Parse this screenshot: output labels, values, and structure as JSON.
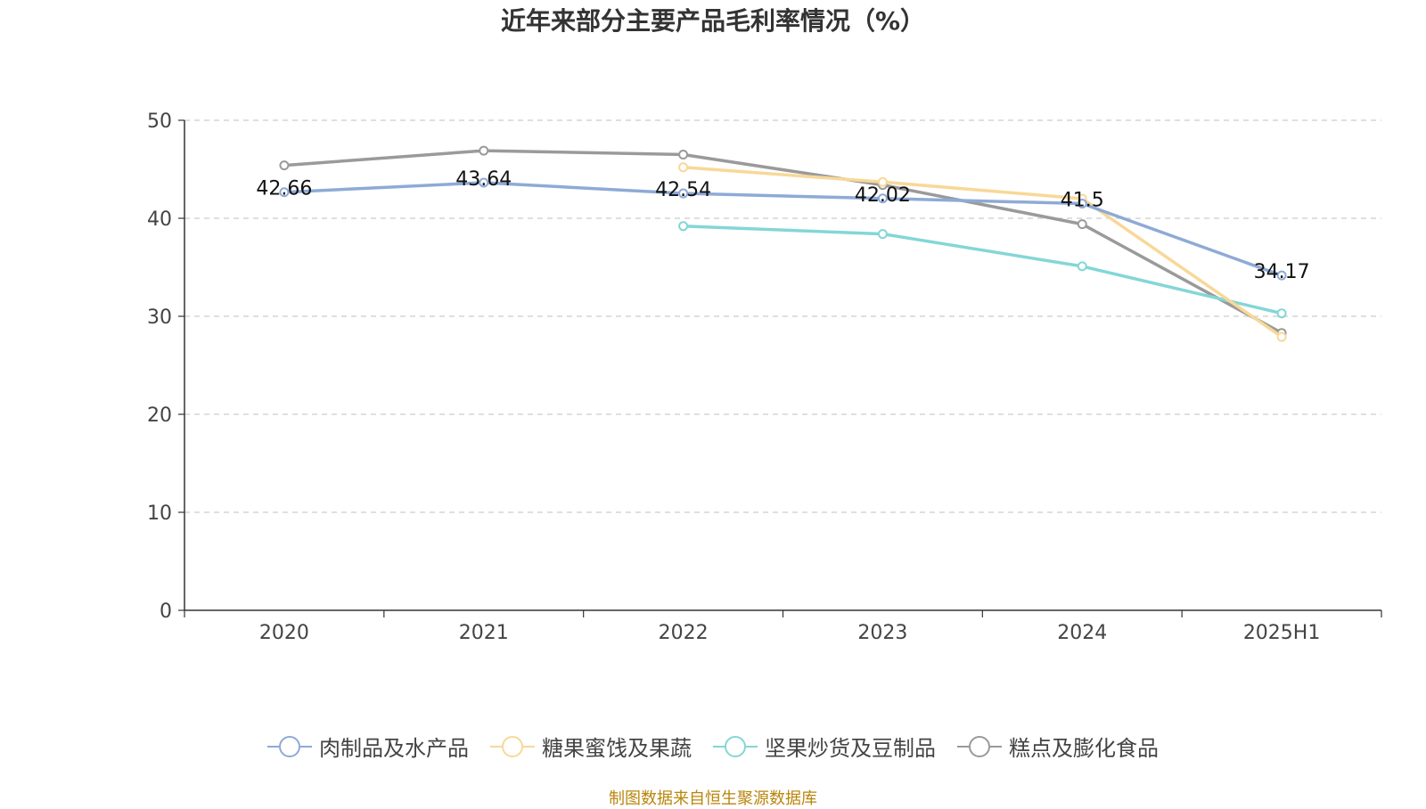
{
  "chart_data": {
    "type": "line",
    "title": "近年来部分主要产品毛利率情况（%）",
    "categories": [
      "2020",
      "2021",
      "2022",
      "2023",
      "2024",
      "2025H1"
    ],
    "ylim": [
      0,
      50
    ],
    "yticks": [
      0,
      10,
      20,
      30,
      40,
      50
    ],
    "grid": true,
    "legend_position": "bottom",
    "series": [
      {
        "name": "肉制品及水产品",
        "color": "#8eaad6",
        "values": [
          42.66,
          43.64,
          42.54,
          42.02,
          41.5,
          34.17
        ],
        "labels": [
          "42.66",
          "43.64",
          "42.54",
          "42.02",
          "41.5",
          "34.17"
        ]
      },
      {
        "name": "糖果蜜饯及果蔬",
        "color": "#f8d898",
        "values": [
          null,
          null,
          45.2,
          43.7,
          42.0,
          27.9
        ],
        "labels": null
      },
      {
        "name": "坚果炒货及豆制品",
        "color": "#84d6d6",
        "values": [
          null,
          null,
          39.2,
          38.4,
          35.1,
          30.3
        ],
        "labels": null
      },
      {
        "name": "糕点及膨化食品",
        "color": "#9a9a9a",
        "values": [
          45.4,
          46.9,
          46.5,
          43.4,
          39.4,
          28.3
        ],
        "labels": null
      }
    ]
  },
  "source_note": "制图数据来自恒生聚源数据库"
}
